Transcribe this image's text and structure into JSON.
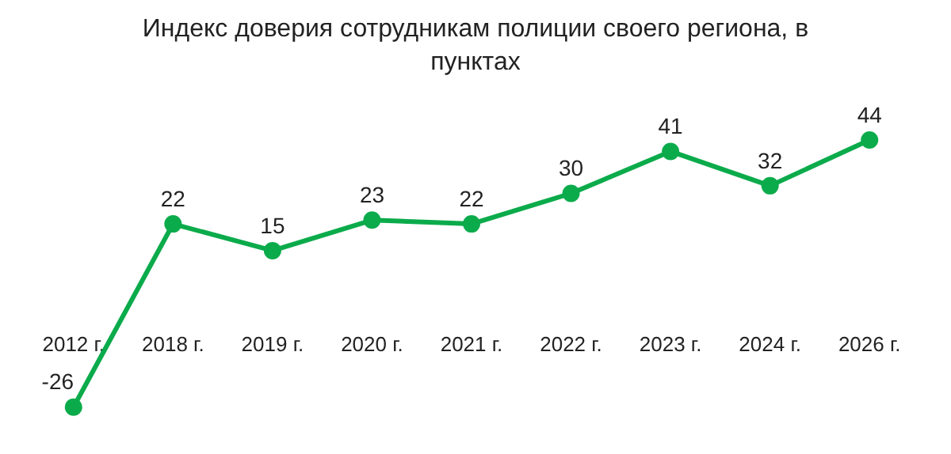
{
  "chart_data": {
    "type": "line",
    "title": "Индекс доверия сотрудникам полиции своего региона, в пунктах",
    "categories": [
      "2012 г.",
      "2018 г.",
      "2019 г.",
      "2020 г.",
      "2021 г.",
      "2022 г.",
      "2023 г.",
      "2024 г.",
      "2026 г."
    ],
    "series": [
      {
        "color": "#0bab4b",
        "values": [
          -26,
          22,
          15,
          23,
          22,
          30,
          41,
          32,
          44
        ]
      }
    ],
    "data_labels": true,
    "marker": "circle",
    "line_style": "solid",
    "grid": false,
    "legend": false
  }
}
